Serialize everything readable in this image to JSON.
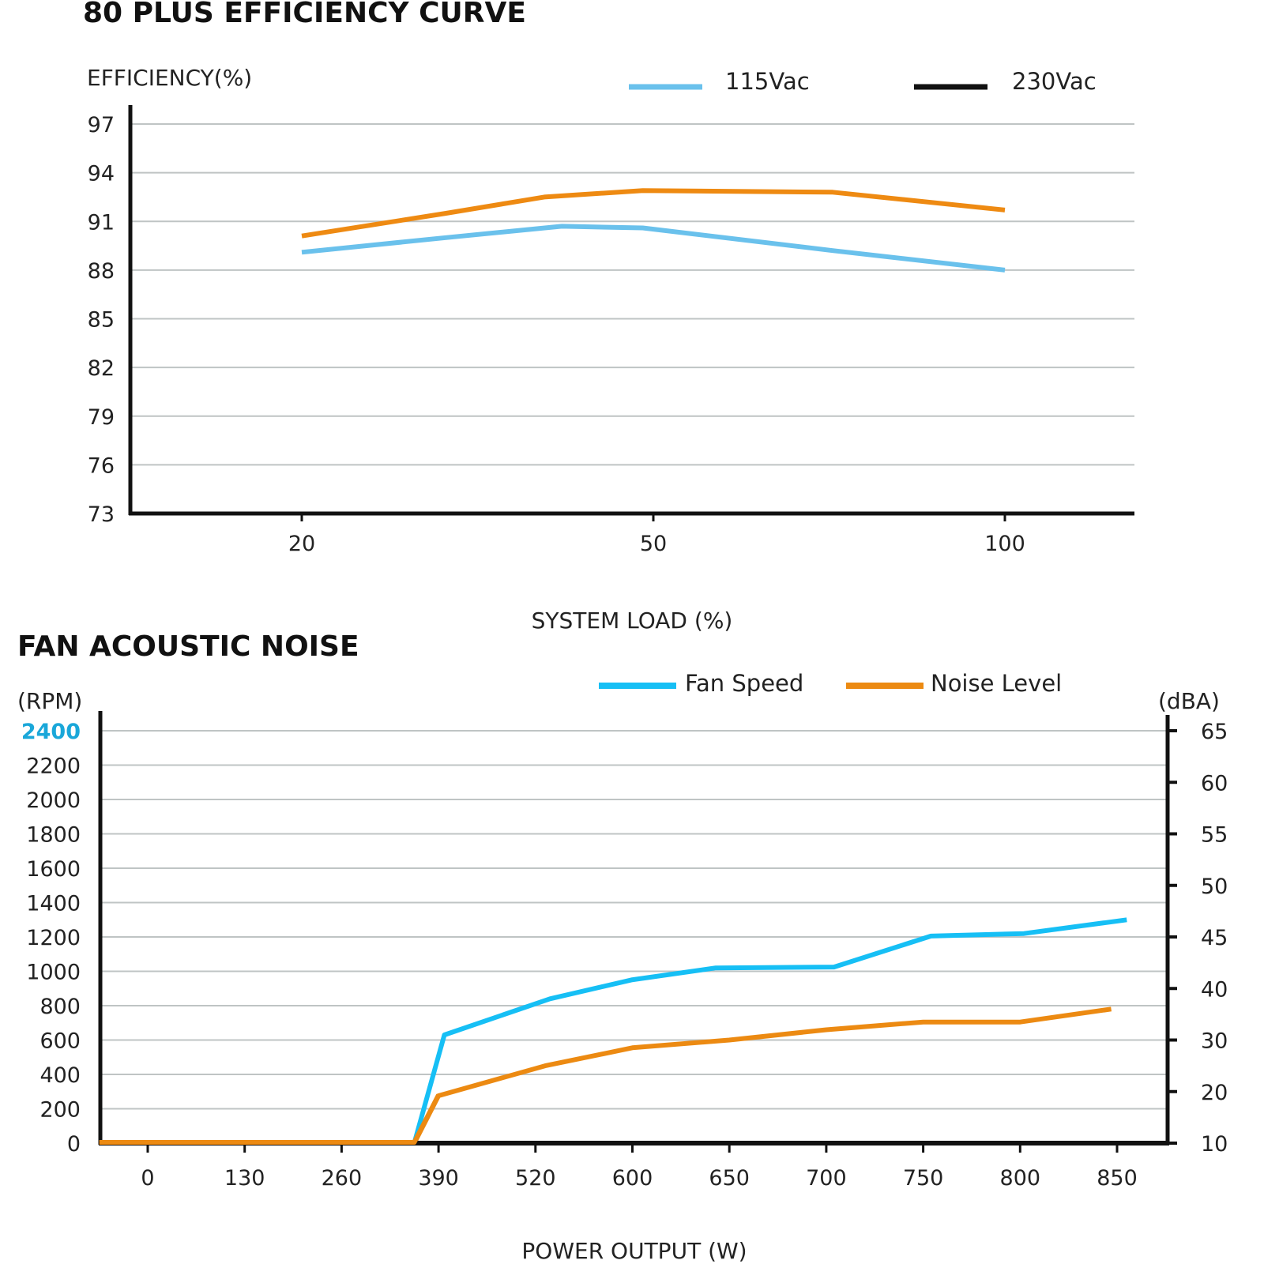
{
  "chart_data": [
    {
      "type": "line",
      "title": "80 PLUS EFFICIENCY CURVE",
      "ylabel": "EFFICIENCY(%)",
      "xlabel": "SYSTEM LOAD (%)",
      "ylim": [
        73,
        97
      ],
      "yticks": [
        97,
        94,
        91,
        88,
        85,
        82,
        79,
        76,
        73
      ],
      "xticks": [
        "20",
        "50",
        "100"
      ],
      "grid": true,
      "legend": "top-right",
      "series": [
        {
          "name": "115Vac",
          "legend_color": "#6ac1ec",
          "color": "#6ac1ec",
          "points": [
            [
              0,
              89.1
            ],
            [
              0.41,
              90.0
            ],
            [
              0.74,
              90.7
            ],
            [
              0.97,
              90.6
            ],
            [
              1.51,
              89.2
            ],
            [
              2,
              88.0
            ]
          ]
        },
        {
          "name": "230Vac",
          "legend_color": "#111111",
          "color": "#ee8a12",
          "points": [
            [
              0,
              90.1
            ],
            [
              0.41,
              91.5
            ],
            [
              0.69,
              92.5
            ],
            [
              0.97,
              92.9
            ],
            [
              1.51,
              92.8
            ],
            [
              2,
              91.7
            ]
          ]
        }
      ],
      "x_note": "x in category-index units: 0=20%, 1=50%, 2=100%"
    },
    {
      "type": "line",
      "title": "FAN ACOUSTIC NOISE",
      "ylabel": "(RPM)",
      "y2label": "(dBA)",
      "xlabel": "POWER OUTPUT (W)",
      "ylim": [
        0,
        2400
      ],
      "yticks": [
        2400,
        2200,
        2000,
        1800,
        1600,
        1400,
        1200,
        1000,
        800,
        600,
        400,
        200,
        0
      ],
      "highlight_ytick": "2400",
      "highlight_color": "#1aa7d9",
      "y2ticks": [
        65,
        60,
        55,
        50,
        45,
        40,
        30,
        20,
        10
      ],
      "xticks": [
        "0",
        "130",
        "260",
        "390",
        "520",
        "600",
        "650",
        "700",
        "750",
        "800",
        "850"
      ],
      "grid": true,
      "legend": "top-right",
      "series": [
        {
          "name": "Fan Speed",
          "color": "#16bff5",
          "axis": "left",
          "points_rpm": [
            [
              -0.5,
              0
            ],
            [
              2.75,
              0
            ],
            [
              3.06,
              630
            ],
            [
              4.15,
              840
            ],
            [
              4.99,
              950
            ],
            [
              5.86,
              1020
            ],
            [
              7.08,
              1025
            ],
            [
              8.08,
              1205
            ],
            [
              9.04,
              1220
            ],
            [
              10.1,
              1300
            ]
          ]
        },
        {
          "name": "Noise Level",
          "color": "#ec8a12",
          "axis": "right",
          "points_dba": [
            [
              -0.5,
              10
            ],
            [
              2.75,
              10
            ],
            [
              3.0,
              19.2
            ],
            [
              4.1,
              25
            ],
            [
              5.0,
              28.5
            ],
            [
              6.0,
              30
            ],
            [
              7.0,
              32
            ],
            [
              8.0,
              33.5
            ],
            [
              9.0,
              33.5
            ],
            [
              9.94,
              36
            ]
          ]
        }
      ],
      "x_note": "x in category-index units: 0='0', 1='130', ... 10='850'"
    }
  ]
}
